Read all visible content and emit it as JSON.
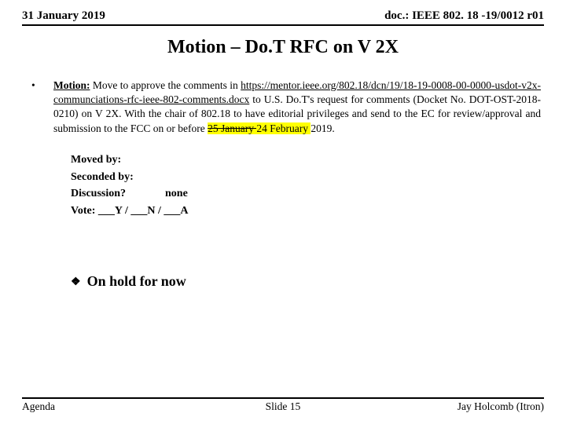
{
  "header": {
    "date": "31 January 2019",
    "doc": "doc.: IEEE 802. 18 -19/0012 r01"
  },
  "title": "Motion – Do.T RFC on V 2X",
  "motion": {
    "bullet": "•",
    "label": "Motion:",
    "pre_link": " Move to approve the comments in ",
    "link": "https://mentor.ieee.org/802.18/dcn/19/18-19-0008-00-0000-usdot-v2x-communciations-rfc-ieee-802-comments.docx",
    "post_link": " to U.S. Do.T's request for comments (Docket No. DOT-OST-2018-0210) on V 2X. With the chair of 802.18 to have editorial privileges and send to the EC for review/approval and submission to the FCC on or before ",
    "struck": "25 January ",
    "inserted": "24 February ",
    "tail": " 2019."
  },
  "vote": {
    "moved_label": "Moved by:",
    "seconded_label": "Seconded by:",
    "discussion_label": "Discussion?",
    "discussion_value": "none",
    "vote_line": "Vote:   ___Y  /  ___N  /  ___A"
  },
  "hold": {
    "marker": "❖",
    "text": "On hold for now"
  },
  "footer": {
    "left": "Agenda",
    "center": "Slide 15",
    "right": "Jay Holcomb (Itron)"
  }
}
